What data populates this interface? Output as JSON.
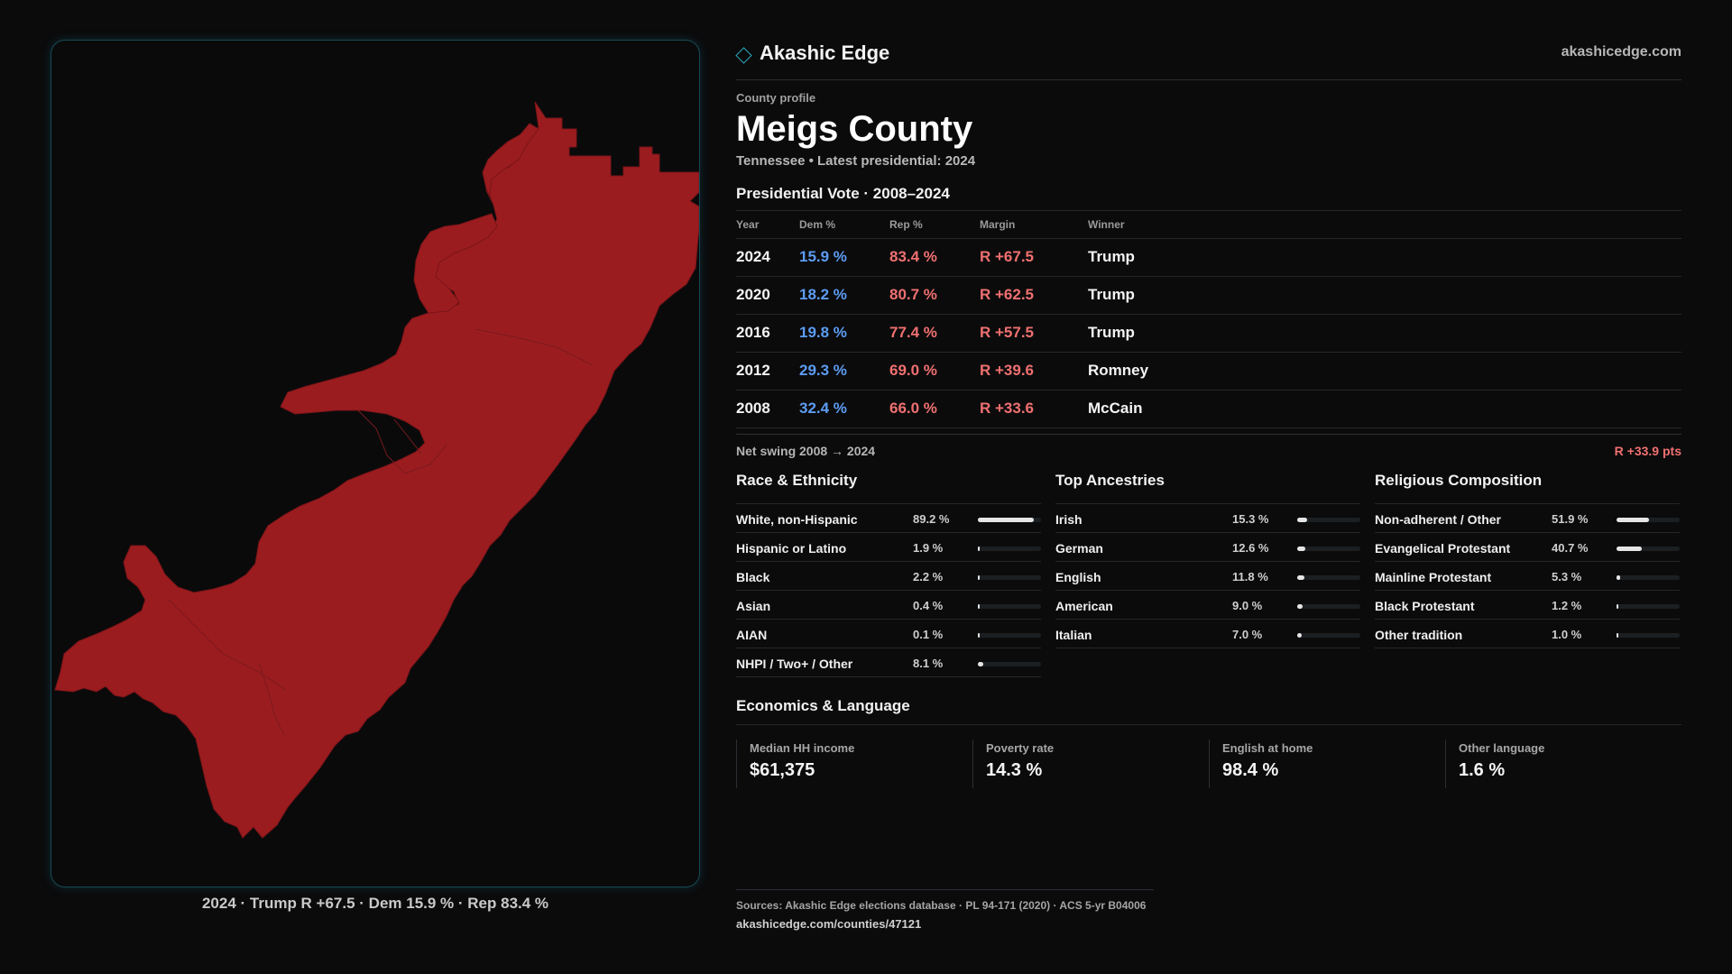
{
  "brand": {
    "name": "Akashic Edge",
    "icon": "diamond-icon",
    "domain": "akashicedge.com"
  },
  "profile": {
    "kicker": "County profile",
    "title": "Meigs County",
    "subtitle": "Tennessee • Latest presidential: 2024"
  },
  "map": {
    "caption": "2024 · Trump R +67.5 · Dem 15.9 % · Rep 83.4 %",
    "fill_color": "#9b1c1f",
    "border_color": "#174a55"
  },
  "votes": {
    "heading": "Presidential Vote · 2008–2024",
    "columns": [
      "Year",
      "Dem %",
      "Rep %",
      "Margin",
      "Winner"
    ],
    "rows": [
      {
        "year": "2024",
        "dem": "15.9 %",
        "rep": "83.4 %",
        "margin": "R +67.5",
        "winner": "Trump"
      },
      {
        "year": "2020",
        "dem": "18.2 %",
        "rep": "80.7 %",
        "margin": "R +62.5",
        "winner": "Trump"
      },
      {
        "year": "2016",
        "dem": "19.8 %",
        "rep": "77.4 %",
        "margin": "R +57.5",
        "winner": "Trump"
      },
      {
        "year": "2012",
        "dem": "29.3 %",
        "rep": "69.0 %",
        "margin": "R +39.6",
        "winner": "Romney"
      },
      {
        "year": "2008",
        "dem": "32.4 %",
        "rep": "66.0 %",
        "margin": "R +33.6",
        "winner": "McCain"
      }
    ],
    "dem_color": "#5d9cf2",
    "rep_color": "#f07070"
  },
  "swing": {
    "label": "Net swing 2008 → 2024",
    "value": "R +33.9 pts"
  },
  "race": {
    "title": "Race & Ethnicity",
    "items": [
      {
        "label": "White, non-Hispanic",
        "value": "89.2 %",
        "pct": 89.2
      },
      {
        "label": "Hispanic or Latino",
        "value": "1.9 %",
        "pct": 1.9
      },
      {
        "label": "Black",
        "value": "2.2 %",
        "pct": 2.2
      },
      {
        "label": "Asian",
        "value": "0.4 %",
        "pct": 0.4
      },
      {
        "label": "AIAN",
        "value": "0.1 %",
        "pct": 0.1
      },
      {
        "label": "NHPI / Two+ / Other",
        "value": "8.1 %",
        "pct": 8.1
      }
    ]
  },
  "ancestry": {
    "title": "Top Ancestries",
    "items": [
      {
        "label": "Irish",
        "value": "15.3 %",
        "pct": 15.3
      },
      {
        "label": "German",
        "value": "12.6 %",
        "pct": 12.6
      },
      {
        "label": "English",
        "value": "11.8 %",
        "pct": 11.8
      },
      {
        "label": "American",
        "value": "9.0 %",
        "pct": 9.0
      },
      {
        "label": "Italian",
        "value": "7.0 %",
        "pct": 7.0
      }
    ]
  },
  "religion": {
    "title": "Religious Composition",
    "items": [
      {
        "label": "Non-adherent / Other",
        "value": "51.9 %",
        "pct": 51.9
      },
      {
        "label": "Evangelical Protestant",
        "value": "40.7 %",
        "pct": 40.7
      },
      {
        "label": "Mainline Protestant",
        "value": "5.3 %",
        "pct": 5.3
      },
      {
        "label": "Black Protestant",
        "value": "1.2 %",
        "pct": 1.2
      },
      {
        "label": "Other tradition",
        "value": "1.0 %",
        "pct": 1.0
      }
    ]
  },
  "economics": {
    "title": "Economics & Language",
    "items": [
      {
        "label": "Median HH income",
        "value": "$61,375"
      },
      {
        "label": "Poverty rate",
        "value": "14.3 %"
      },
      {
        "label": "English at home",
        "value": "98.4 %"
      },
      {
        "label": "Other language",
        "value": "1.6 %"
      }
    ]
  },
  "footer": {
    "sources": "Sources: Akashic Edge elections database · PL 94-171 (2020) · ACS 5-yr B04006",
    "url": "akashicedge.com/counties/47121"
  }
}
